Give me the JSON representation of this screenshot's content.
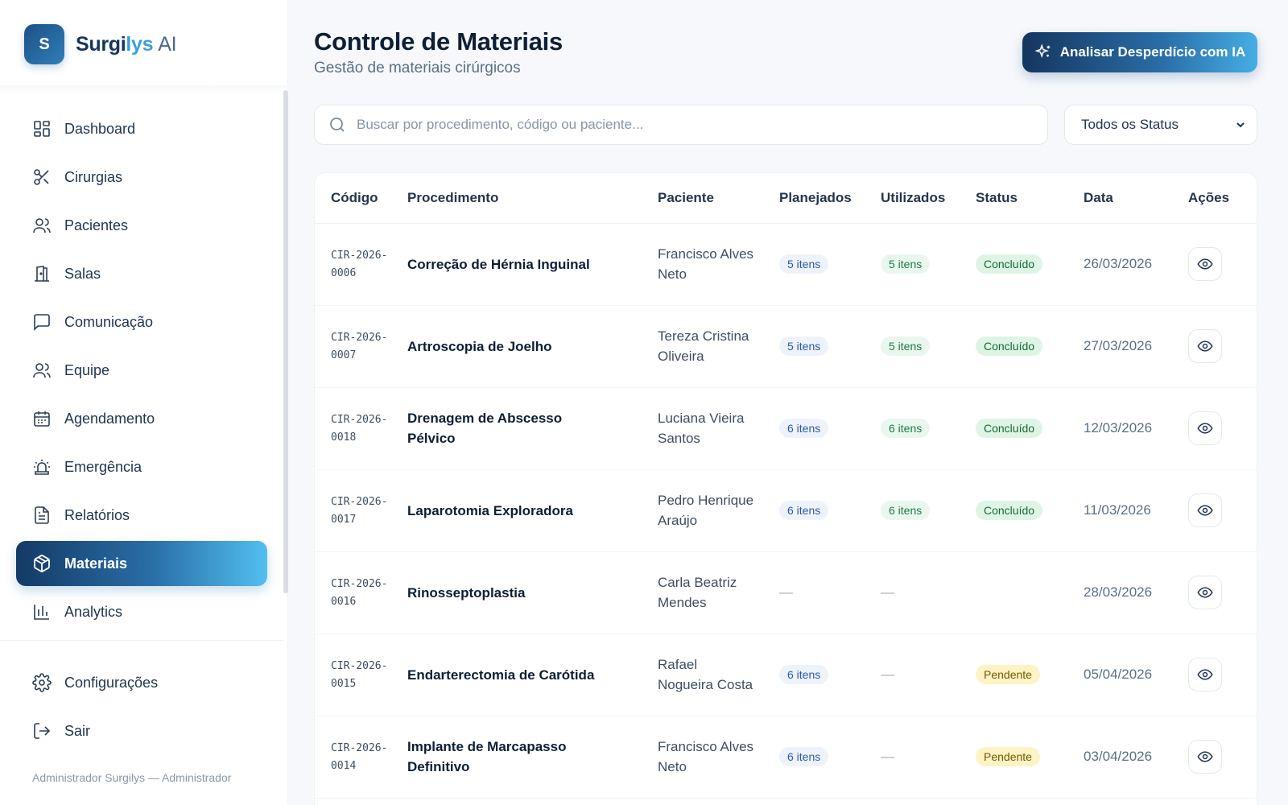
{
  "app": {
    "brand_letter": "S",
    "brand_name_part1": "Surgi",
    "brand_name_part2": "lys",
    "brand_name_part3": "AI"
  },
  "sidebar": {
    "items": [
      {
        "label": "Dashboard",
        "icon": "dashboard-icon"
      },
      {
        "label": "Cirurgias",
        "icon": "scissors-icon"
      },
      {
        "label": "Pacientes",
        "icon": "users-icon"
      },
      {
        "label": "Salas",
        "icon": "door-icon"
      },
      {
        "label": "Comunicação",
        "icon": "chat-icon"
      },
      {
        "label": "Equipe",
        "icon": "team-icon"
      },
      {
        "label": "Agendamento",
        "icon": "calendar-icon"
      },
      {
        "label": "Emergência",
        "icon": "siren-icon"
      },
      {
        "label": "Relatórios",
        "icon": "file-icon"
      },
      {
        "label": "Materiais",
        "icon": "box-icon",
        "active": true
      },
      {
        "label": "Analytics",
        "icon": "bar-chart-icon"
      }
    ],
    "bottom_items": [
      {
        "label": "Configurações",
        "icon": "gear-icon"
      },
      {
        "label": "Sair",
        "icon": "logout-icon"
      }
    ],
    "user_line": "Administrador Surgilys — Administrador"
  },
  "header": {
    "title": "Controle de Materiais",
    "subtitle": "Gestão de materiais cirúrgicos",
    "ai_button_label": "Analisar Desperdício com IA"
  },
  "filters": {
    "search_placeholder": "Buscar por procedimento, código ou paciente...",
    "status_selected": "Todos os Status"
  },
  "table": {
    "columns": [
      "Código",
      "Procedimento",
      "Paciente",
      "Planejados",
      "Utilizados",
      "Status",
      "Data",
      "Ações"
    ],
    "rows": [
      {
        "code": "CIR-2026-\n0006",
        "procedure": "Correção de Hérnia Inguinal",
        "patient": "Francisco Alves Neto",
        "planned": "5 itens",
        "used": "5 itens",
        "status": "Concluído",
        "status_kind": "done",
        "date": "26/03/2026"
      },
      {
        "code": "CIR-2026-\n0007",
        "procedure": "Artroscopia de Joelho",
        "patient": "Tereza Cristina Oliveira",
        "planned": "5 itens",
        "used": "5 itens",
        "status": "Concluído",
        "status_kind": "done",
        "date": "27/03/2026"
      },
      {
        "code": "CIR-2026-\n0018",
        "procedure": "Drenagem de Abscesso Pélvico",
        "patient": "Luciana Vieira Santos",
        "planned": "6 itens",
        "used": "6 itens",
        "status": "Concluído",
        "status_kind": "done",
        "date": "12/03/2026"
      },
      {
        "code": "CIR-2026-\n0017",
        "procedure": "Laparotomia Exploradora",
        "patient": "Pedro Henrique Araújo",
        "planned": "6 itens",
        "used": "6 itens",
        "status": "Concluído",
        "status_kind": "done",
        "date": "11/03/2026"
      },
      {
        "code": "CIR-2026-\n0016",
        "procedure": "Rinosseptoplastia",
        "patient": "Carla Beatriz Mendes",
        "planned": "—",
        "used": "—",
        "status": "",
        "status_kind": "none",
        "date": "28/03/2026"
      },
      {
        "code": "CIR-2026-\n0015",
        "procedure": "Endarterectomia de Carótida",
        "patient": "Rafael Nogueira Costa",
        "planned": "6 itens",
        "used": "—",
        "status": "Pendente",
        "status_kind": "pend",
        "date": "05/04/2026"
      },
      {
        "code": "CIR-2026-\n0014",
        "procedure": "Implante de Marcapasso Definitivo",
        "patient": "Francisco Alves Neto",
        "planned": "6 itens",
        "used": "—",
        "status": "Pendente",
        "status_kind": "pend",
        "date": "03/04/2026"
      }
    ]
  },
  "colors": {
    "accent_dark": "#14365f",
    "accent_light": "#52bff0",
    "status_done_bg": "#def5e5",
    "status_pending_bg": "#fdf3c4"
  }
}
